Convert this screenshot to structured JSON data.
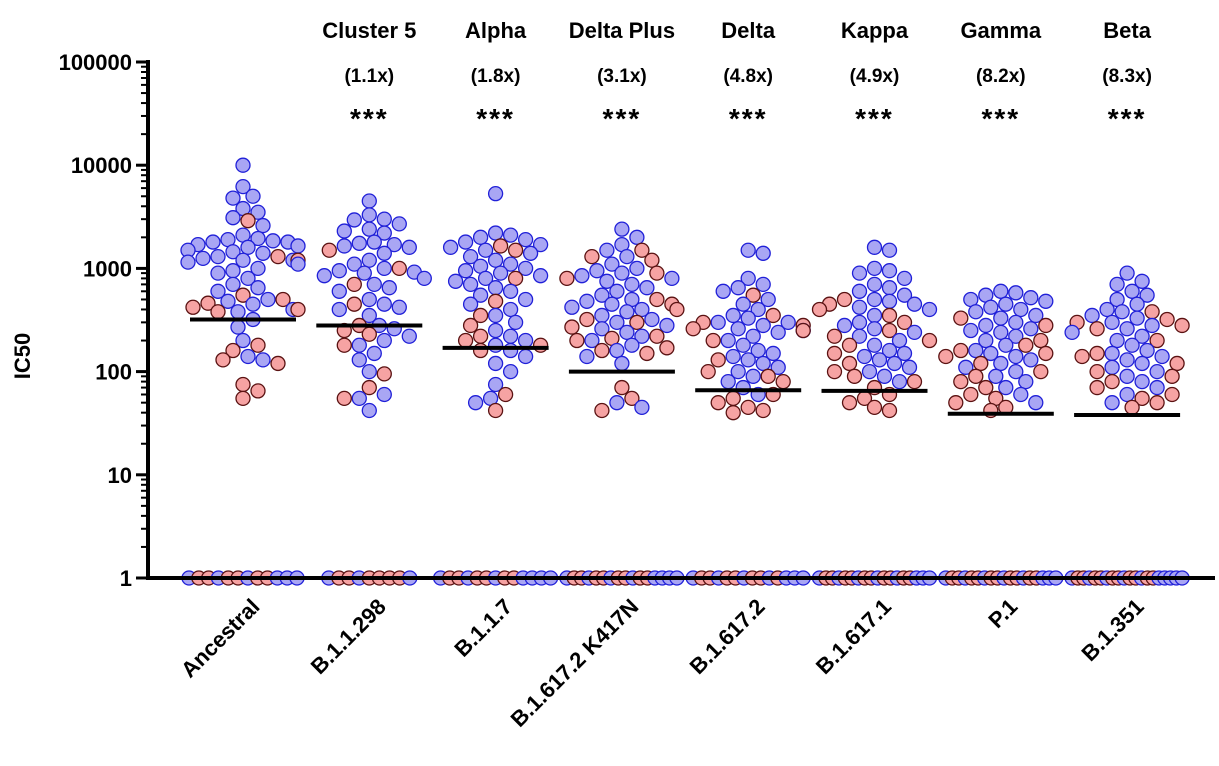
{
  "chart_data": {
    "type": "scatter",
    "ylabel": "IC50",
    "yscale": "log",
    "ylim": [
      1,
      100000
    ],
    "yticks": [
      "1",
      "10",
      "100",
      "1000",
      "10000",
      "100000"
    ],
    "grid": false,
    "categories": [
      "Ancestral",
      "B.1.1.298",
      "B.1.1.7",
      "B.1.617.2 K417N",
      "B.1.617.2",
      "B.1.617.1",
      "P.1",
      "B.1.351"
    ],
    "variant_names": [
      "",
      "Cluster 5",
      "Alpha",
      "Delta Plus",
      "Delta",
      "Kappa",
      "Gamma",
      "Beta"
    ],
    "fold_changes": [
      "",
      "(1.1x)",
      "(1.8x)",
      "(3.1x)",
      "(4.8x)",
      "(4.9x)",
      "(8.2x)",
      "(8.3x)"
    ],
    "significance": [
      "",
      "***",
      "***",
      "***",
      "***",
      "***",
      "***",
      "***"
    ],
    "medians": [
      320,
      280,
      170,
      100,
      66,
      65,
      39,
      38
    ],
    "series": [
      {
        "category": "Ancestral",
        "blue": [
          10000,
          6200,
          5000,
          4800,
          3800,
          3500,
          3100,
          2600,
          2100,
          1950,
          1900,
          1850,
          1800,
          1800,
          1700,
          1650,
          1600,
          1500,
          1450,
          1400,
          1300,
          1250,
          1200,
          1200,
          1150,
          1100,
          1000,
          950,
          900,
          800,
          700,
          650,
          600,
          500,
          480,
          450,
          400,
          380,
          320,
          270,
          200,
          140,
          130
        ],
        "red": [
          2900,
          1200,
          1300,
          550,
          500,
          460,
          420,
          400,
          380,
          180,
          160,
          130,
          120,
          75,
          65,
          55
        ],
        "blue_at_floor": 4,
        "red_at_floor": 8
      },
      {
        "category": "B.1.1.298",
        "blue": [
          4500,
          3300,
          3000,
          2950,
          2700,
          2400,
          2300,
          2200,
          1800,
          1750,
          1700,
          1650,
          1600,
          1400,
          1200,
          1100,
          1000,
          950,
          920,
          900,
          850,
          800,
          700,
          650,
          600,
          500,
          450,
          420,
          400,
          350,
          280,
          260,
          220,
          200,
          180,
          150,
          130,
          100,
          60,
          55,
          42
        ],
        "red": [
          1500,
          1000,
          700,
          450,
          280,
          250,
          230,
          180,
          95,
          70,
          55
        ],
        "blue_at_floor": 2,
        "red_at_floor": 7
      },
      {
        "category": "B.1.1.7",
        "blue": [
          5300,
          2200,
          2100,
          2000,
          1900,
          1800,
          1700,
          1600,
          1500,
          1400,
          1300,
          1200,
          1100,
          1050,
          1000,
          950,
          900,
          850,
          800,
          750,
          700,
          650,
          600,
          550,
          500,
          450,
          400,
          350,
          300,
          250,
          220,
          200,
          180,
          160,
          140,
          120,
          100,
          75,
          55,
          50
        ],
        "red": [
          1650,
          1500,
          800,
          480,
          350,
          280,
          220,
          200,
          180,
          160,
          60,
          42
        ],
        "blue_at_floor": 5,
        "red_at_floor": 8
      },
      {
        "category": "B.1.617.2 K417N",
        "blue": [
          2400,
          2000,
          1700,
          1500,
          1300,
          1100,
          1000,
          950,
          900,
          850,
          800,
          750,
          700,
          650,
          600,
          550,
          500,
          480,
          450,
          420,
          400,
          380,
          350,
          320,
          300,
          280,
          260,
          240,
          220,
          200,
          180,
          160,
          140,
          120,
          50,
          45
        ],
        "red": [
          1500,
          1300,
          1200,
          900,
          800,
          500,
          450,
          400,
          320,
          300,
          270,
          220,
          210,
          200,
          170,
          160,
          150,
          70,
          55,
          42
        ],
        "blue_at_floor": 6,
        "red_at_floor": 10
      },
      {
        "category": "B.1.617.2",
        "blue": [
          1500,
          1400,
          800,
          700,
          650,
          600,
          500,
          450,
          400,
          350,
          330,
          300,
          300,
          280,
          260,
          250,
          240,
          220,
          200,
          180,
          160,
          150,
          140,
          130,
          120,
          110,
          100,
          90,
          80,
          70,
          60
        ],
        "red": [
          550,
          350,
          300,
          280,
          260,
          250,
          200,
          130,
          100,
          90,
          80,
          60,
          55,
          50,
          45,
          42,
          40
        ],
        "blue_at_floor": 6,
        "red_at_floor": 8
      },
      {
        "category": "B.1.617.1",
        "blue": [
          1600,
          1500,
          1000,
          950,
          900,
          800,
          700,
          650,
          600,
          550,
          500,
          480,
          450,
          420,
          400,
          350,
          300,
          280,
          260,
          240,
          220,
          200,
          180,
          160,
          150,
          140,
          130,
          120,
          110,
          100,
          90,
          80
        ],
        "red": [
          500,
          450,
          400,
          350,
          300,
          250,
          220,
          200,
          180,
          150,
          120,
          100,
          90,
          80,
          70,
          60,
          55,
          50,
          45,
          42
        ],
        "blue_at_floor": 6,
        "red_at_floor": 12
      },
      {
        "category": "P.1",
        "blue": [
          600,
          580,
          550,
          520,
          500,
          480,
          450,
          420,
          400,
          380,
          350,
          330,
          300,
          280,
          260,
          250,
          240,
          220,
          200,
          180,
          160,
          150,
          140,
          130,
          120,
          110,
          100,
          90,
          80,
          70,
          60,
          50
        ],
        "red": [
          330,
          280,
          200,
          180,
          160,
          150,
          140,
          120,
          100,
          90,
          80,
          70,
          60,
          55,
          50,
          45,
          42
        ],
        "blue_at_floor": 6,
        "red_at_floor": 12
      },
      {
        "category": "B.1.351",
        "blue": [
          900,
          750,
          700,
          600,
          550,
          500,
          450,
          400,
          380,
          350,
          330,
          300,
          280,
          260,
          240,
          220,
          200,
          180,
          160,
          150,
          140,
          130,
          120,
          110,
          100,
          90,
          80,
          70,
          60,
          50
        ],
        "red": [
          380,
          320,
          300,
          280,
          260,
          200,
          150,
          140,
          120,
          100,
          90,
          80,
          70,
          60,
          55,
          50,
          45
        ],
        "blue_at_floor": 8,
        "red_at_floor": 12
      }
    ],
    "colors": {
      "blue_fill": "#a9a6f4",
      "blue_stroke": "#2020d8",
      "red_fill": "#f6a3a3",
      "red_stroke": "#5a1212",
      "axis": "#000000",
      "median": "#000000"
    }
  }
}
